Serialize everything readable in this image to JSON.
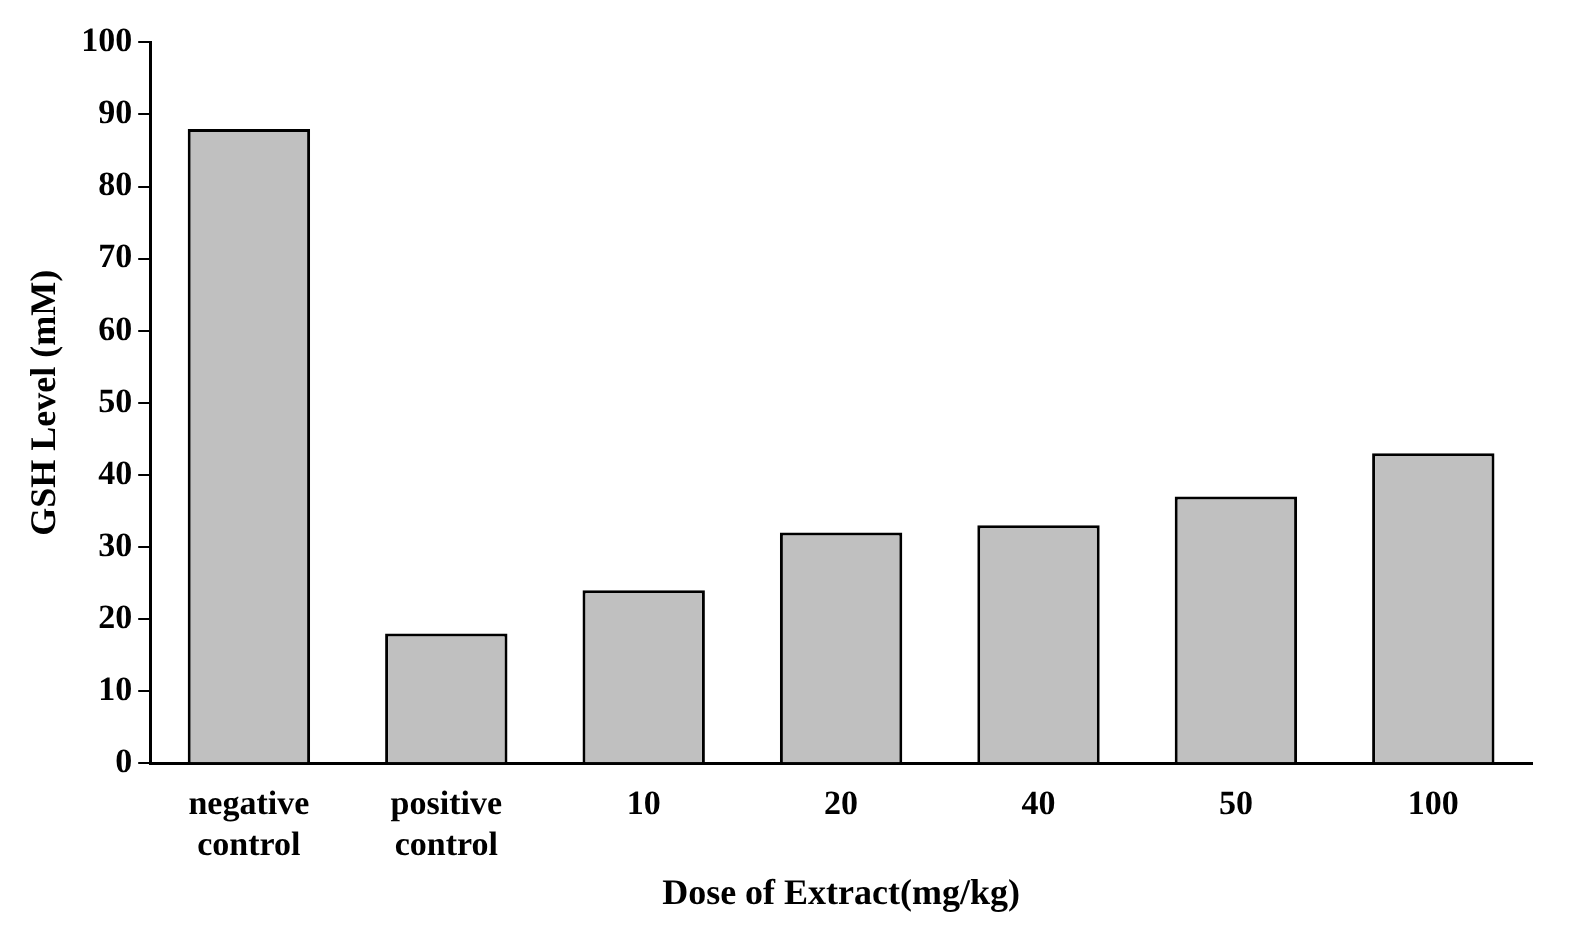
{
  "chart_data": {
    "type": "bar",
    "xlabel": "Dose of Extract(mg/kg)",
    "ylabel": "GSH Level (mM)",
    "categories": [
      "negative control",
      "positive control",
      "10",
      "20",
      "40",
      "50",
      "100"
    ],
    "values": [
      88,
      18,
      24,
      32,
      33,
      37,
      43
    ],
    "color": "#c0c0c0",
    "ylim": [
      0,
      100
    ],
    "yticks": [
      0,
      10,
      20,
      30,
      40,
      50,
      60,
      70,
      80,
      90,
      100
    ],
    "grid": false,
    "legend": false
  }
}
